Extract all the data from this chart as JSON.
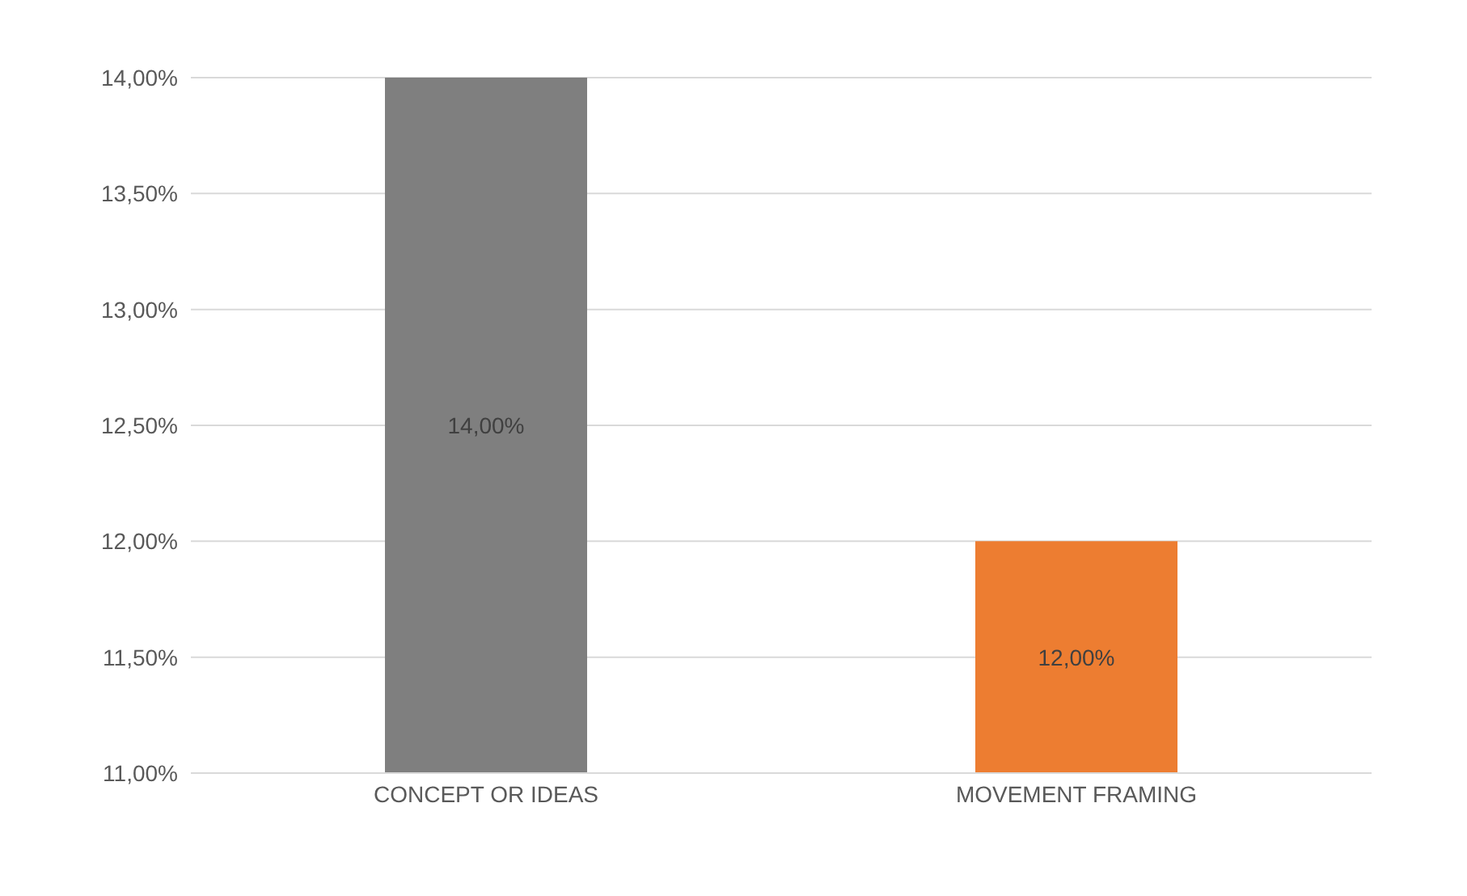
{
  "chart_data": {
    "type": "bar",
    "categories": [
      "CONCEPT OR IDEAS",
      "MOVEMENT FRAMING"
    ],
    "values": [
      14,
      12
    ],
    "colors": [
      "#7f7f7f",
      "#ed7d31"
    ],
    "value_labels": [
      "14,00%",
      "12,00%"
    ],
    "ylim": [
      11,
      14
    ],
    "yticks": [
      {
        "value": 11,
        "label": "11,00%"
      },
      {
        "value": 11.5,
        "label": "11,50%"
      },
      {
        "value": 12,
        "label": "12,00%"
      },
      {
        "value": 12.5,
        "label": "12,50%"
      },
      {
        "value": 13,
        "label": "13,00%"
      },
      {
        "value": 13.5,
        "label": "13,50%"
      },
      {
        "value": 14,
        "label": "14,00%"
      }
    ],
    "grid": "y",
    "legend": false
  }
}
